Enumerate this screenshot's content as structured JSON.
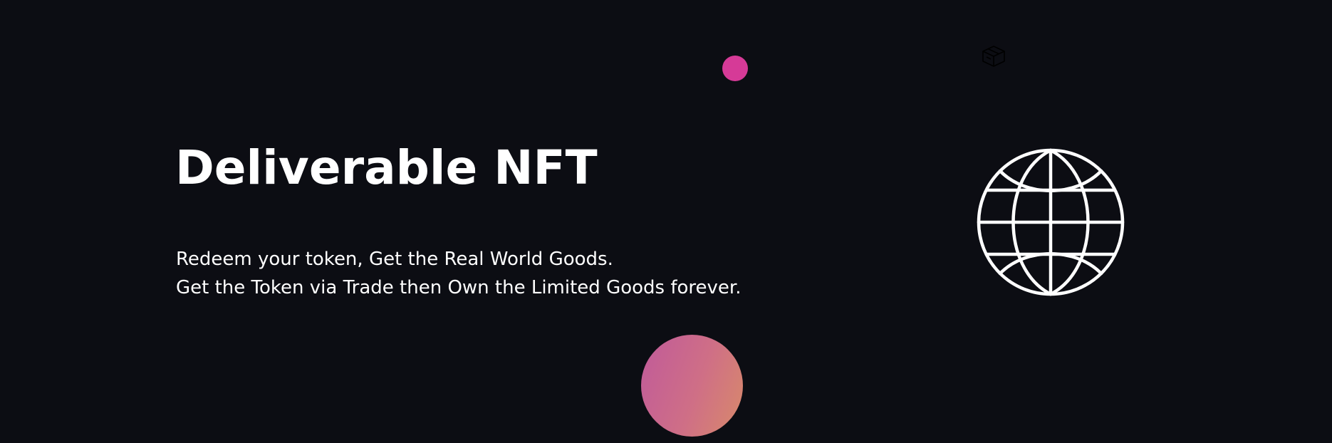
{
  "hero": {
    "title": "Deliverable NFT",
    "subtitle_line1": "Redeem your token, Get the Real World Goods.",
    "subtitle_line2": "Get the Token via Trade then Own the Limited Goods forever."
  },
  "icons": {
    "globe": "globe-icon",
    "box": "box-icon"
  },
  "colors": {
    "background": "#0c0d13",
    "text": "#ffffff",
    "accent_pink": "#d63a97",
    "orb_start": "#c05a9a",
    "orb_end": "#d88a6a"
  }
}
